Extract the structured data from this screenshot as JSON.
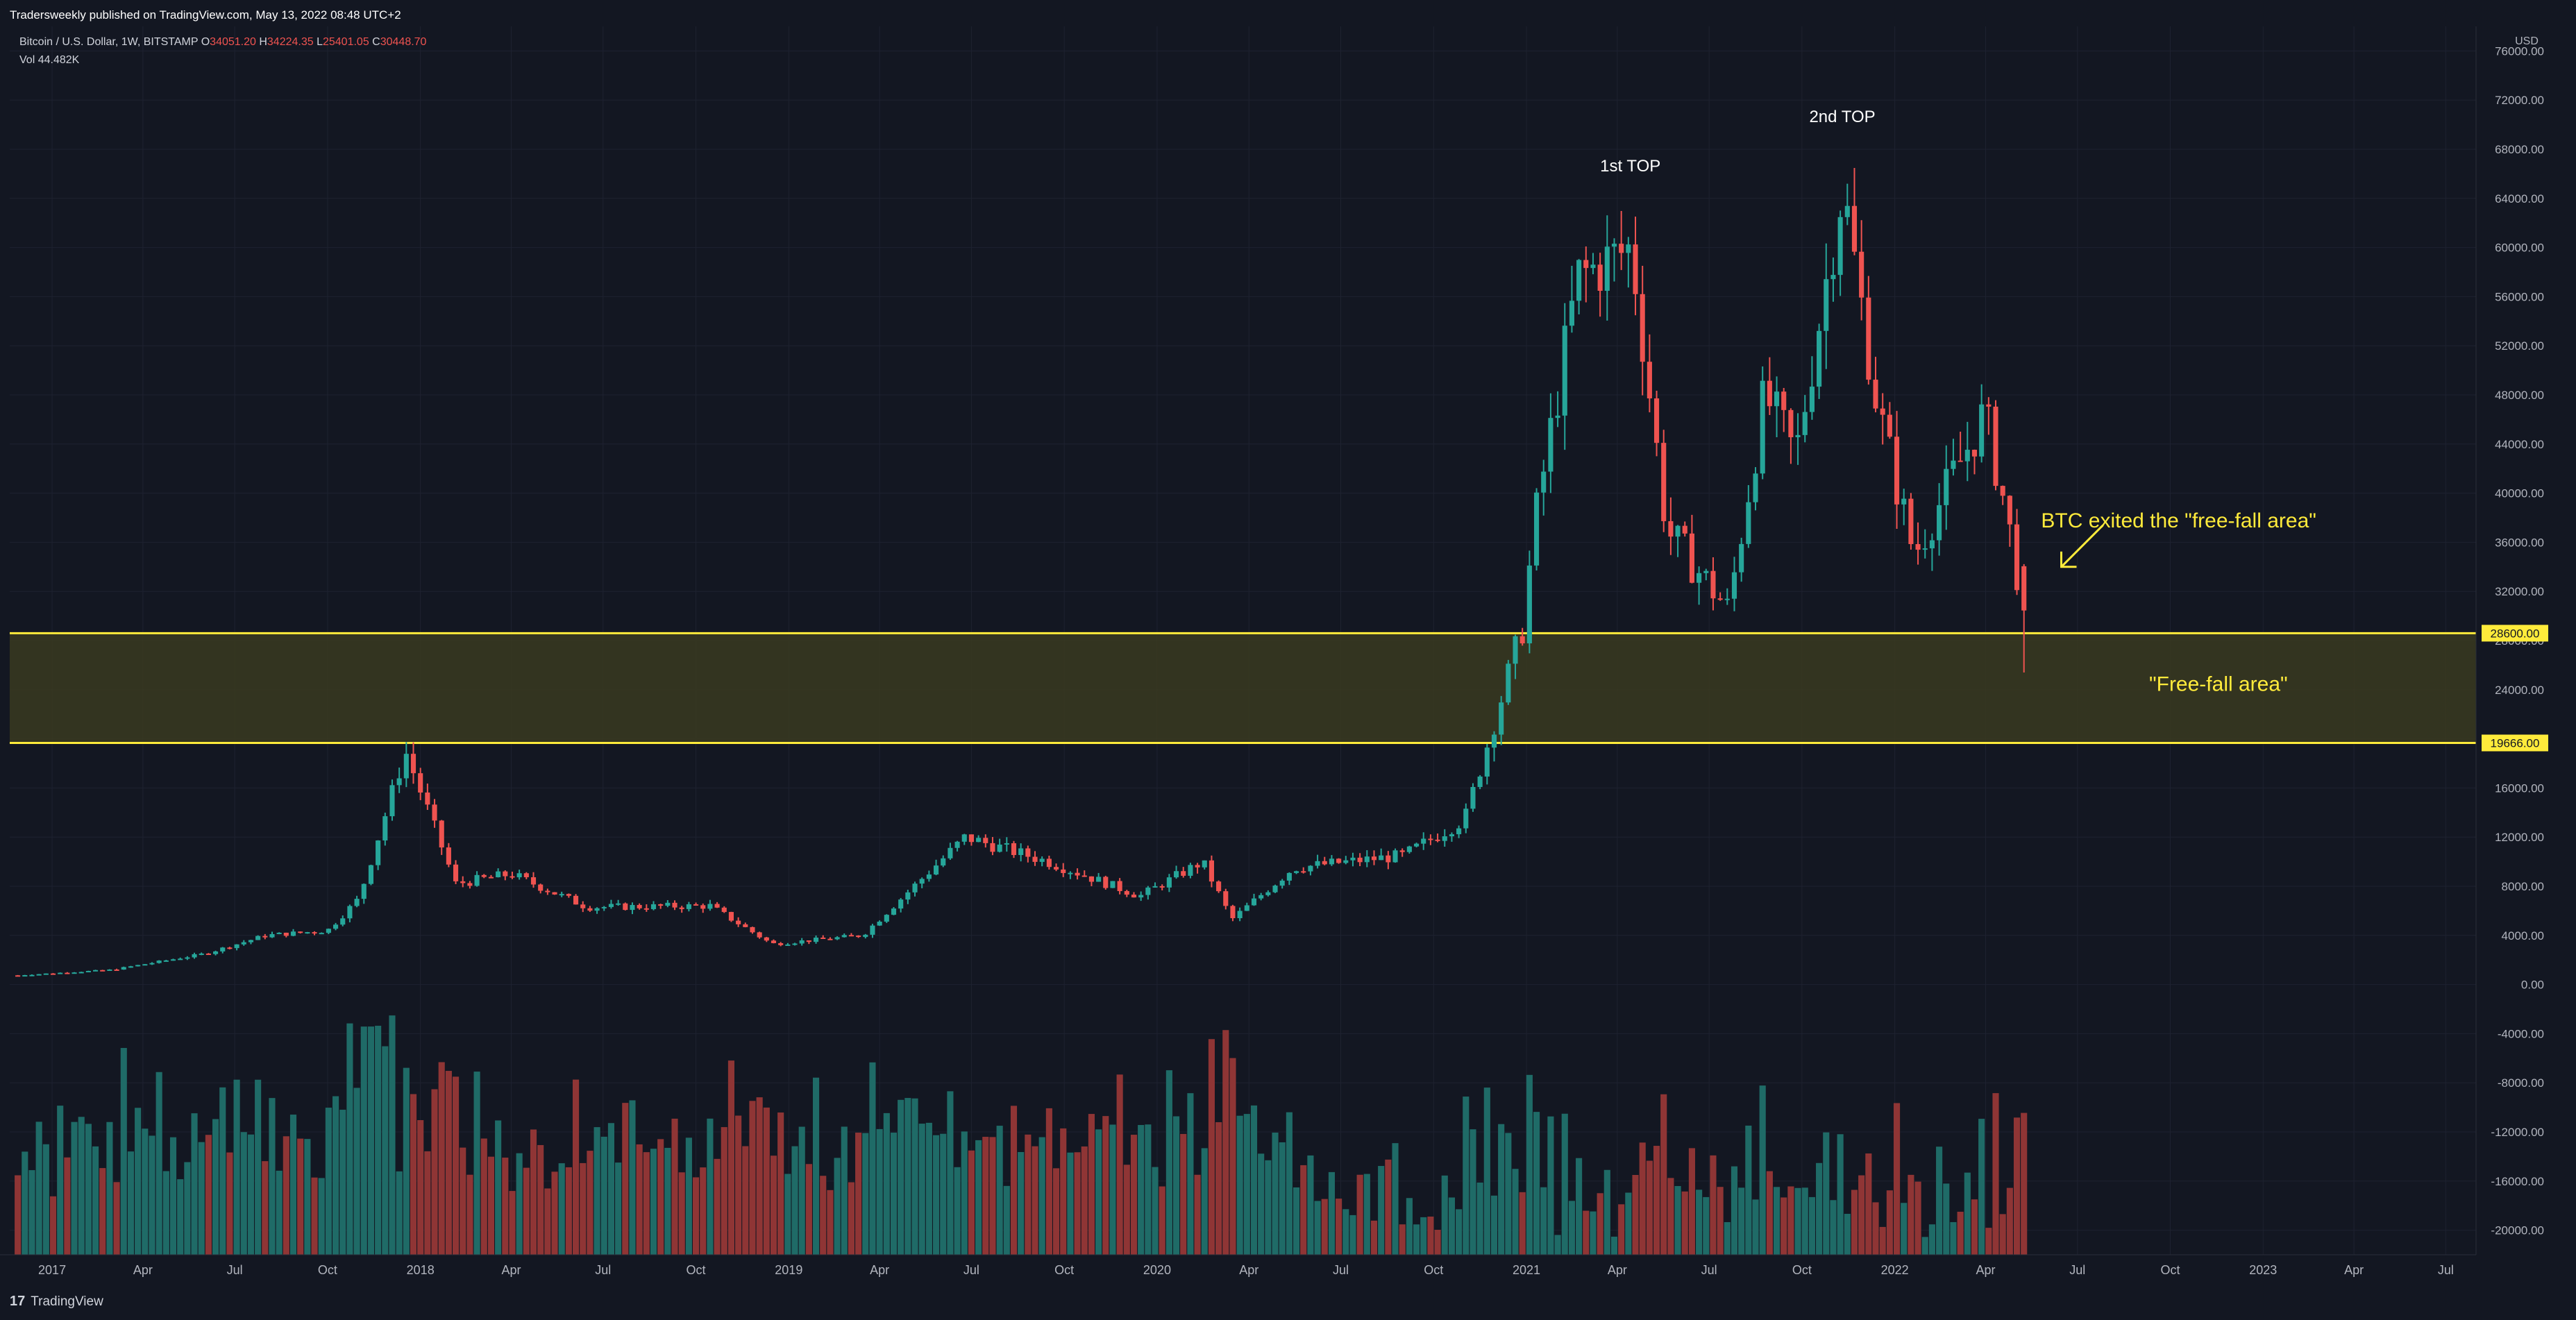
{
  "header": {
    "publisher": "Tradersweekly published on TradingView.com, May 13, 2022 08:48 UTC+2",
    "symbol": "Bitcoin / U.S. Dollar, 1W, BITSTAMP",
    "ohlc": [
      {
        "label": "O",
        "value": "34051.20"
      },
      {
        "label": "H",
        "value": "34224.35"
      },
      {
        "label": "L",
        "value": "25401.05"
      },
      {
        "label": "C",
        "value": "30448.70"
      }
    ],
    "vol_label": "Vol",
    "vol_value": "44.482K"
  },
  "footer": {
    "brand": "TradingView",
    "brand_mark": "17"
  },
  "colors": {
    "background": "#131722",
    "grid": "#1e2230",
    "up": "#26a69a",
    "down": "#ef5350",
    "vol_up": "#1f6b67",
    "vol_down": "#8f3535",
    "zone_line": "#ffeb3b",
    "zone_fill": "#3a3920",
    "annotation": "#ffeb3b",
    "axis_text": "#b2b5be"
  },
  "chart_data": {
    "type": "candlestick",
    "timeframe": "1W",
    "y_axis_unit": "USD",
    "ylim": [
      -22000,
      78000
    ],
    "y_ticks": [
      76000,
      72000,
      68000,
      64000,
      60000,
      56000,
      52000,
      48000,
      44000,
      40000,
      36000,
      32000,
      28000,
      24000,
      20000,
      16000,
      12000,
      8000,
      4000,
      0,
      -4000,
      -8000,
      -12000,
      -16000,
      -20000
    ],
    "y_tick_labels": [
      "76000.00",
      "72000.00",
      "68000.00",
      "64000.00",
      "60000.00",
      "56000.00",
      "52000.00",
      "48000.00",
      "44000.00",
      "40000.00",
      "36000.00",
      "32000.00",
      "28000.00",
      "24000.00",
      "20000.00",
      "16000.00",
      "12000.00",
      "8000.00",
      "4000.00",
      "0.00",
      "-4000.00",
      "-8000.00",
      "-12000.00",
      "-16000.00",
      "-20000.00"
    ],
    "x_ticks": [
      {
        "label": "2017",
        "date": "2017-01-01"
      },
      {
        "label": "Apr",
        "date": "2017-04-01"
      },
      {
        "label": "Jul",
        "date": "2017-07-01"
      },
      {
        "label": "Oct",
        "date": "2017-10-01"
      },
      {
        "label": "2018",
        "date": "2018-01-01"
      },
      {
        "label": "Apr",
        "date": "2018-04-01"
      },
      {
        "label": "Jul",
        "date": "2018-07-01"
      },
      {
        "label": "Oct",
        "date": "2018-10-01"
      },
      {
        "label": "2019",
        "date": "2019-01-01"
      },
      {
        "label": "Apr",
        "date": "2019-04-01"
      },
      {
        "label": "Jul",
        "date": "2019-07-01"
      },
      {
        "label": "Oct",
        "date": "2019-10-01"
      },
      {
        "label": "2020",
        "date": "2020-01-01"
      },
      {
        "label": "Apr",
        "date": "2020-04-01"
      },
      {
        "label": "Jul",
        "date": "2020-07-01"
      },
      {
        "label": "Oct",
        "date": "2020-10-01"
      },
      {
        "label": "2021",
        "date": "2021-01-01"
      },
      {
        "label": "Apr",
        "date": "2021-04-01"
      },
      {
        "label": "Jul",
        "date": "2021-07-01"
      },
      {
        "label": "Oct",
        "date": "2021-10-01"
      },
      {
        "label": "2022",
        "date": "2022-01-01"
      },
      {
        "label": "Apr",
        "date": "2022-04-01"
      },
      {
        "label": "Jul",
        "date": "2022-07-01"
      },
      {
        "label": "Oct",
        "date": "2022-10-01"
      },
      {
        "label": "2023",
        "date": "2023-01-01"
      },
      {
        "label": "Apr",
        "date": "2023-04-01"
      },
      {
        "label": "Jul",
        "date": "2023-07-01"
      }
    ],
    "x_range": [
      "2016-11-20",
      "2023-07-31"
    ],
    "key_closes": [
      {
        "date": "2016-11-28",
        "close": 750
      },
      {
        "date": "2017-03-01",
        "close": 1200
      },
      {
        "date": "2017-06-01",
        "close": 2500
      },
      {
        "date": "2017-08-01",
        "close": 4000
      },
      {
        "date": "2017-10-01",
        "close": 4400
      },
      {
        "date": "2017-11-01",
        "close": 7000
      },
      {
        "date": "2017-12-17",
        "close": 19000
      },
      {
        "date": "2018-02-05",
        "close": 8200
      },
      {
        "date": "2018-04-01",
        "close": 9000
      },
      {
        "date": "2018-06-15",
        "close": 6300
      },
      {
        "date": "2018-10-15",
        "close": 6400
      },
      {
        "date": "2018-12-15",
        "close": 3300
      },
      {
        "date": "2019-03-15",
        "close": 4000
      },
      {
        "date": "2019-06-25",
        "close": 12000
      },
      {
        "date": "2019-09-15",
        "close": 10000
      },
      {
        "date": "2019-12-15",
        "close": 7200
      },
      {
        "date": "2020-02-15",
        "close": 10000
      },
      {
        "date": "2020-03-15",
        "close": 5300
      },
      {
        "date": "2020-05-15",
        "close": 9500
      },
      {
        "date": "2020-09-01",
        "close": 10500
      },
      {
        "date": "2020-11-01",
        "close": 13500
      },
      {
        "date": "2020-12-28",
        "close": 29000
      },
      {
        "date": "2021-01-10",
        "close": 38000
      },
      {
        "date": "2021-02-21",
        "close": 57500
      },
      {
        "date": "2021-04-15",
        "close": 60000
      },
      {
        "date": "2021-05-20",
        "close": 37000
      },
      {
        "date": "2021-07-20",
        "close": 30500
      },
      {
        "date": "2021-08-25",
        "close": 48000
      },
      {
        "date": "2021-09-25",
        "close": 43000
      },
      {
        "date": "2021-11-10",
        "close": 65000
      },
      {
        "date": "2021-12-15",
        "close": 47000
      },
      {
        "date": "2022-01-20",
        "close": 35000
      },
      {
        "date": "2022-03-31",
        "close": 46500
      },
      {
        "date": "2022-04-20",
        "close": 39000
      },
      {
        "date": "2022-05-09",
        "close": 30448.7
      }
    ],
    "price_levels": [
      {
        "value": 28600,
        "label": "28600.00"
      },
      {
        "value": 19666,
        "label": "19666.00"
      }
    ],
    "zone": {
      "from": 19666,
      "to": 28600,
      "label": "\"Free-fall area\""
    },
    "annotations": [
      {
        "text": "1st TOP",
        "date": "2021-04-14",
        "value": 66200
      },
      {
        "text": "2nd TOP",
        "date": "2021-11-10",
        "value": 70200
      },
      {
        "text": "BTC exited the \"free-fall area\"",
        "date": "2022-05-26",
        "value": 37200
      }
    ],
    "volume_series": {
      "name": "Vol",
      "last_value_label": "44.482K",
      "axis_base": -22000,
      "axis_scale": 0.006
    }
  }
}
